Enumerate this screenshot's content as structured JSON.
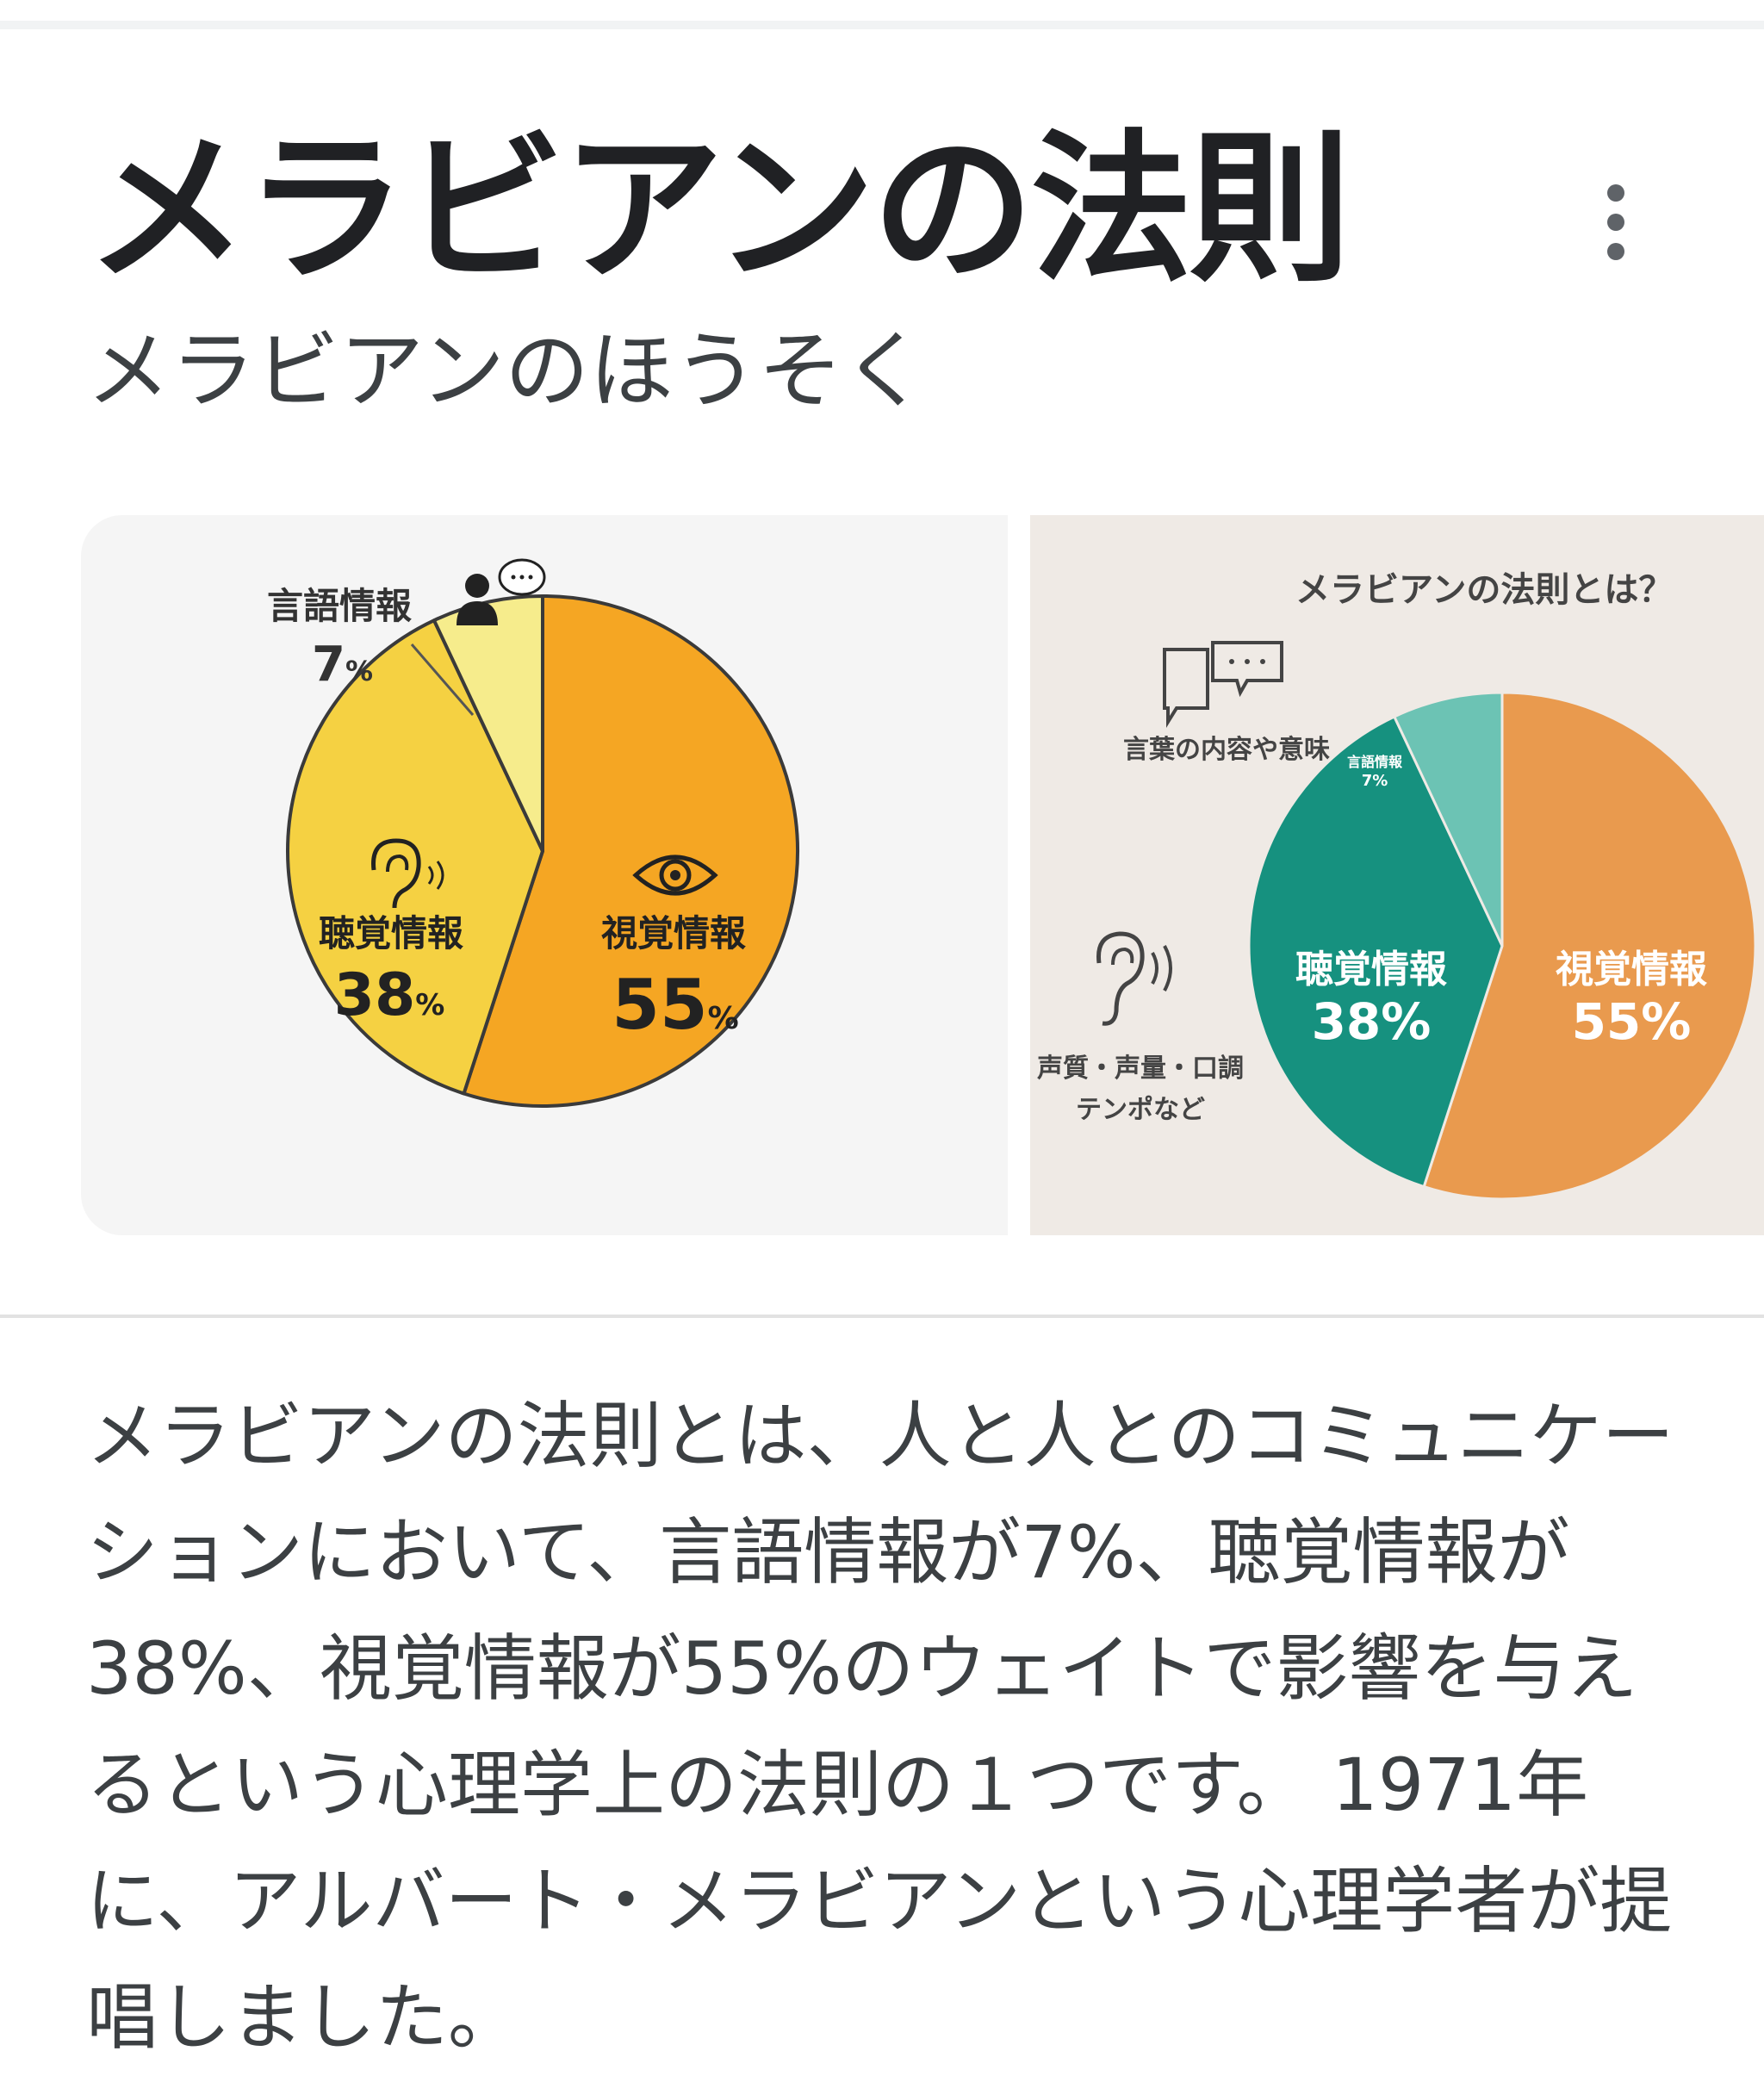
{
  "header": {
    "title": "メラビアンの法則",
    "reading": "メラビアンのほうそく",
    "menu_icon": "more-vert-icon"
  },
  "images": [
    {
      "chart_data": {
        "type": "pie",
        "slices": [
          {
            "label": "視覚情報",
            "value": 55,
            "value_label": "55",
            "color": "#f5a623",
            "icon": "eye-icon"
          },
          {
            "label": "聴覚情報",
            "value": 38,
            "value_label": "38",
            "color": "#f5d142",
            "icon": "ear-icon"
          },
          {
            "label": "言語情報",
            "value": 7,
            "value_label": "7",
            "color": "#f6ec8c",
            "icon": "person-speech-icon"
          }
        ],
        "unit": "%"
      }
    },
    {
      "chart_data": {
        "type": "pie",
        "title": "メラビアンの法則とは？",
        "slices": [
          {
            "label": "視覚情報",
            "value": 55,
            "value_label": "55%",
            "color": "#e99a4e"
          },
          {
            "label": "聴覚情報",
            "value": 38,
            "value_label": "38%",
            "color": "#16917f"
          },
          {
            "label": "言語情報",
            "value": 7,
            "value_label": "7%",
            "color": "#6cc3b4"
          }
        ],
        "annotations": {
          "verbal_note": "言葉の内容や意味",
          "audio_note_1": "声質・声量・口調",
          "audio_note_2": "テンポなど"
        }
      }
    }
  ],
  "description": "メラビアンの法則とは、人と人とのコミュニケーションにおいて、言語情報が7%、聴覚情報が38%、視覚情報が55%のウェイトで影響を与えるという心理学上の法則の１つです。 1971年に、アルバート・メラビアンという心理学者が提唱しました。"
}
